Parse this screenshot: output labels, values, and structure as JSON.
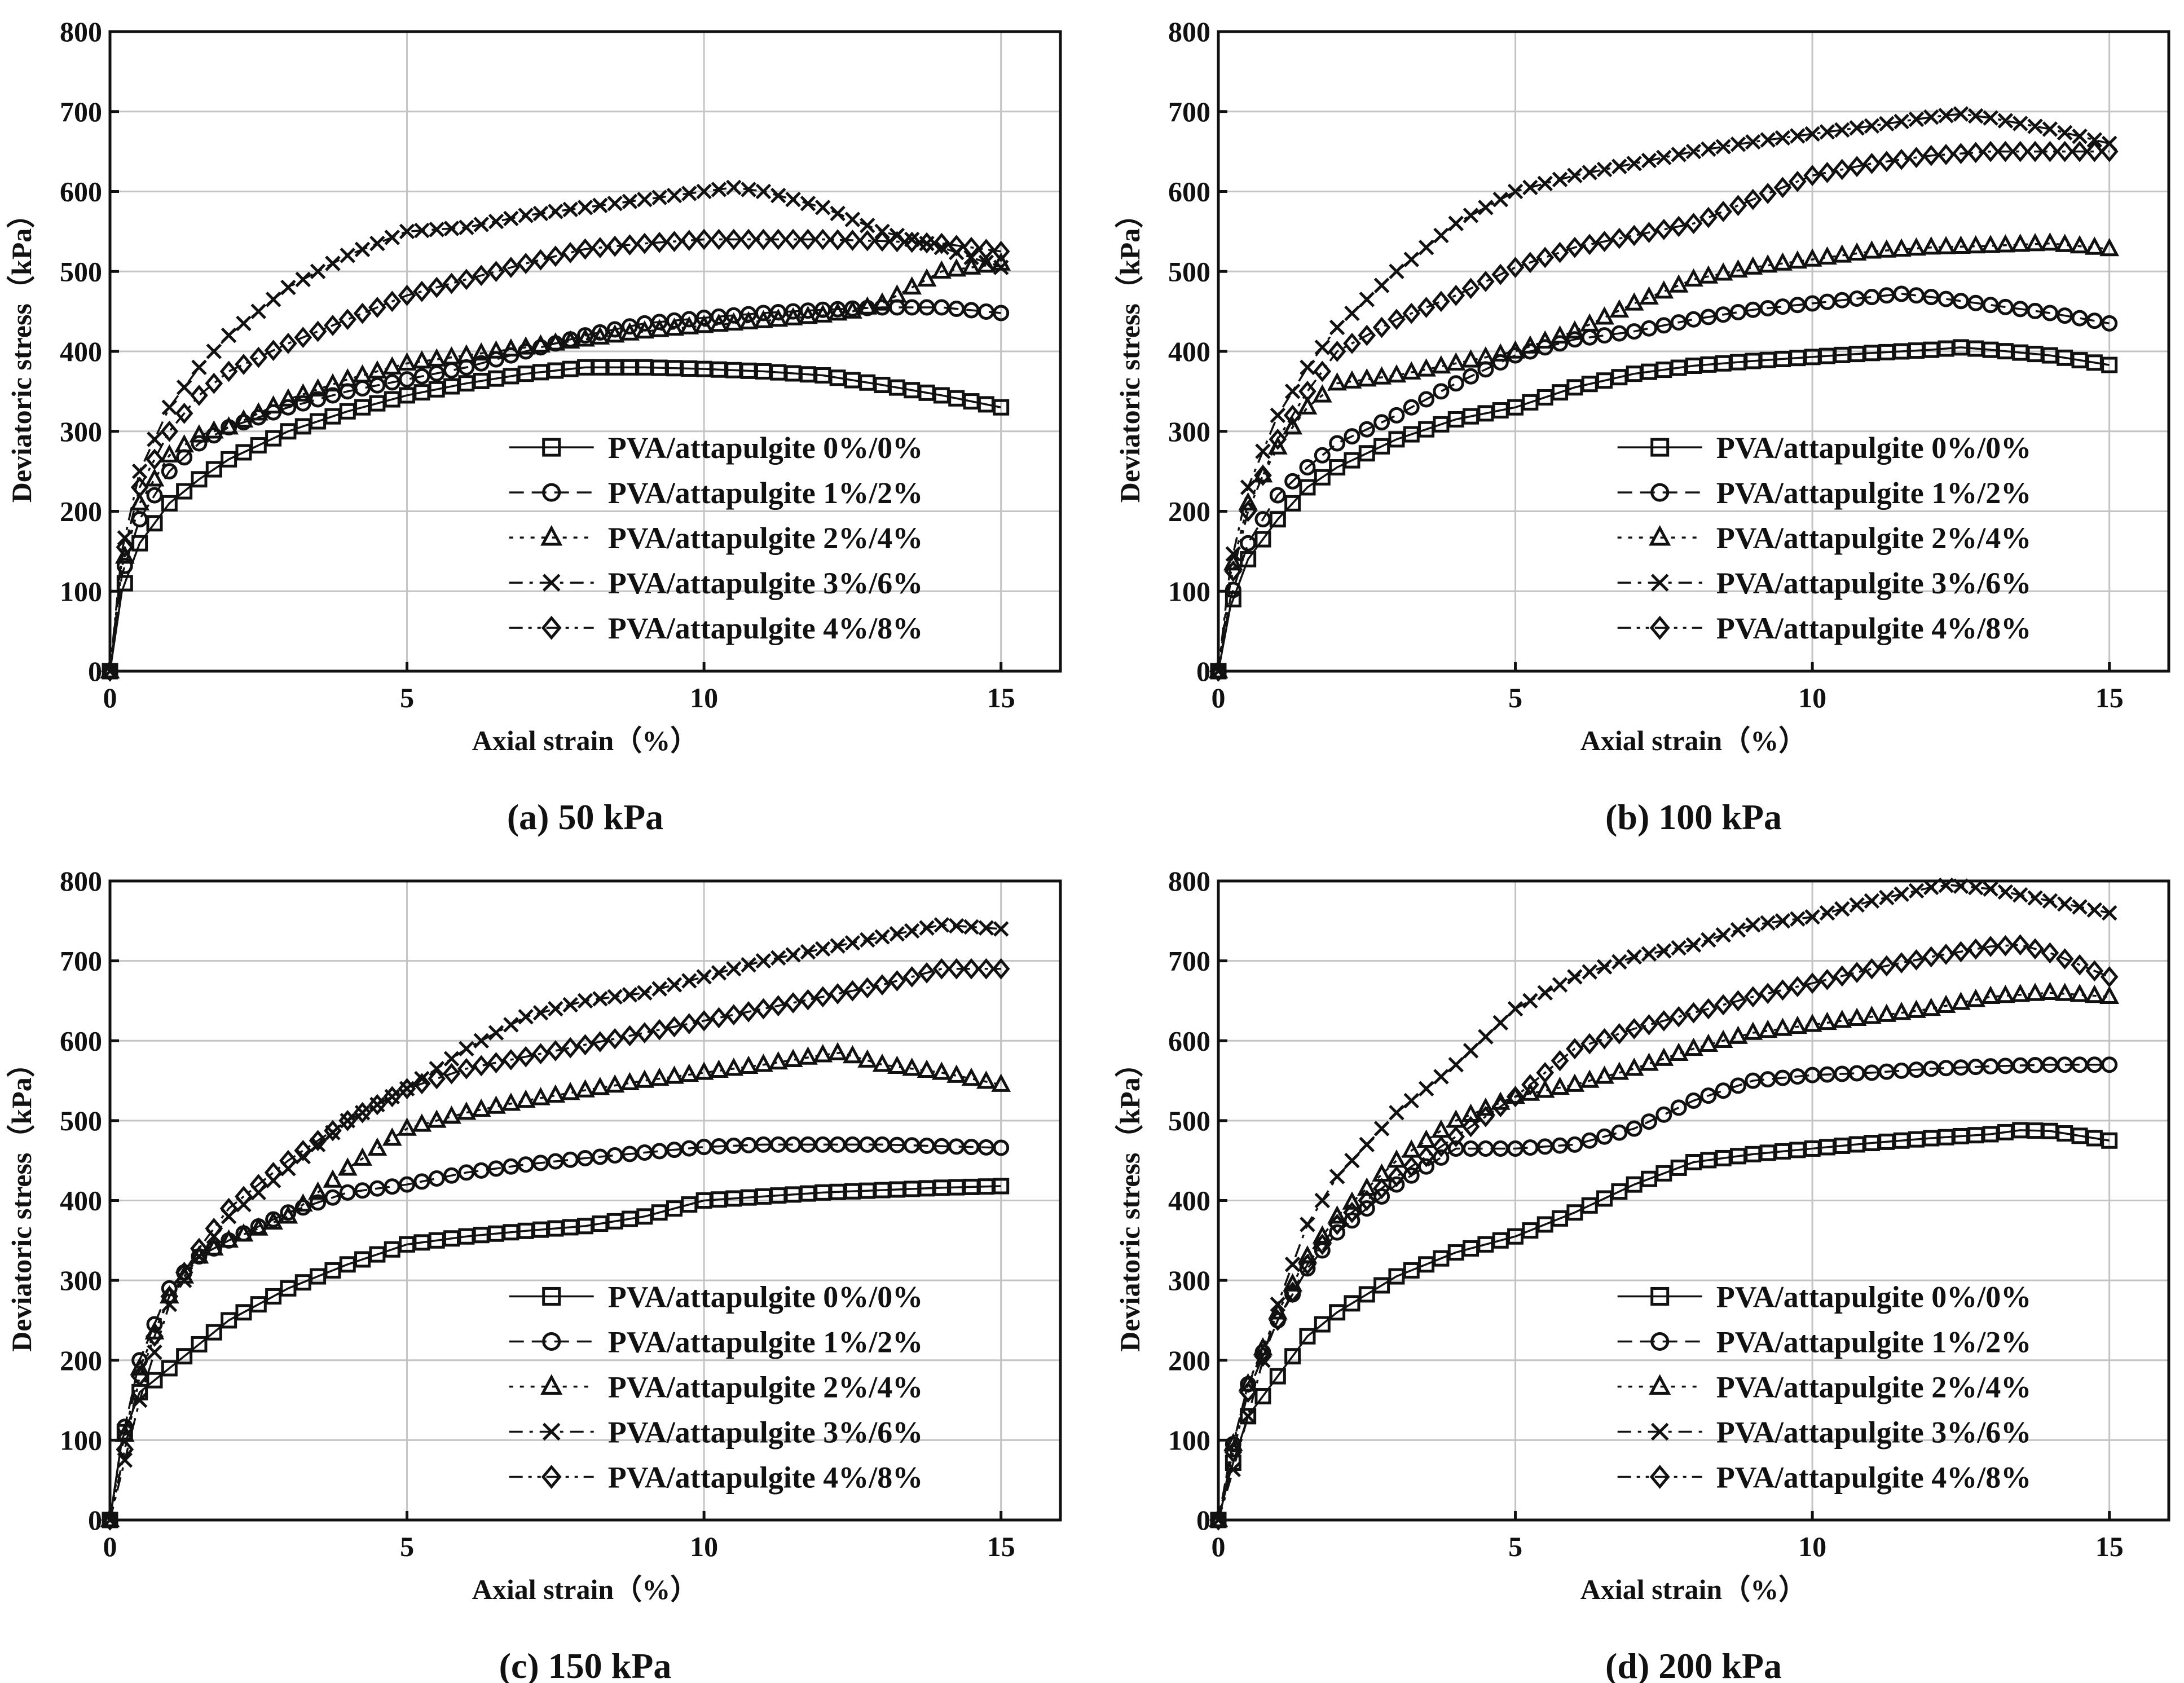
{
  "figure": {
    "colors": {
      "ink": "#111111",
      "grid": "#c4c4c4",
      "background": "#ffffff"
    },
    "legend_labels": [
      "PVA/attapulgite 0%/0%",
      "PVA/attapulgite 1%/2%",
      "PVA/attapulgite 2%/4%",
      "PVA/attapulgite 3%/6%",
      "PVA/attapulgite 4%/8%"
    ],
    "marker_names": [
      "square-marker",
      "circle-marker",
      "triangle-marker",
      "cross-marker",
      "diamond-marker"
    ],
    "line_styles": [
      "solid",
      "dashed",
      "dotted",
      "dash-dot",
      "dash-dot-dot"
    ]
  },
  "chart_data": [
    {
      "type": "line",
      "caption": "(a) 50 kPa",
      "xlabel": "Axial strain（%）",
      "ylabel": "Deviatoric stress（kPa）",
      "xlim": [
        0,
        16
      ],
      "ylim": [
        0,
        800
      ],
      "xticks": [
        0,
        5,
        10,
        15
      ],
      "yticks": [
        0,
        100,
        200,
        300,
        400,
        500,
        600,
        700,
        800
      ],
      "grid": true,
      "legend_position": "lower-right",
      "series": [
        {
          "name": "PVA/attapulgite 0%/0%",
          "x": [
            0,
            0.2,
            0.5,
            1,
            1.5,
            2,
            3,
            4,
            5,
            6,
            7,
            8,
            9,
            10,
            11,
            12,
            13,
            14,
            15
          ],
          "y": [
            0,
            100,
            160,
            210,
            240,
            265,
            300,
            325,
            345,
            360,
            372,
            380,
            380,
            378,
            375,
            370,
            358,
            345,
            330
          ]
        },
        {
          "name": "PVA/attapulgite 1%/2%",
          "x": [
            0,
            0.2,
            0.5,
            1,
            1.5,
            2,
            3,
            4,
            5,
            6,
            7,
            8,
            9,
            10,
            11,
            12,
            13,
            14,
            15
          ],
          "y": [
            0,
            120,
            190,
            250,
            285,
            305,
            330,
            350,
            365,
            380,
            400,
            420,
            435,
            442,
            448,
            452,
            455,
            455,
            448
          ]
        },
        {
          "name": "PVA/attapulgite 2%/4%",
          "x": [
            0,
            0.2,
            0.5,
            1,
            1.5,
            2,
            3,
            4,
            5,
            6,
            7,
            8,
            9,
            10,
            11,
            12,
            12.5,
            13,
            14,
            15
          ],
          "y": [
            0,
            130,
            210,
            270,
            295,
            305,
            340,
            365,
            385,
            395,
            405,
            415,
            425,
            432,
            438,
            445,
            450,
            460,
            500,
            510
          ]
        },
        {
          "name": "PVA/attapulgite 3%/6%",
          "x": [
            0,
            0.2,
            0.5,
            1,
            1.5,
            2,
            3,
            4,
            5,
            6,
            7,
            8,
            9,
            10,
            10.5,
            11,
            12,
            13,
            14,
            15
          ],
          "y": [
            0,
            150,
            250,
            330,
            380,
            420,
            480,
            520,
            550,
            555,
            570,
            580,
            590,
            600,
            605,
            600,
            580,
            550,
            530,
            505
          ]
        },
        {
          "name": "PVA/attapulgite 4%/8%",
          "x": [
            0,
            0.2,
            0.5,
            1,
            1.5,
            2,
            3,
            4,
            5,
            6,
            7,
            8,
            9,
            10,
            11,
            12,
            13,
            14,
            15
          ],
          "y": [
            0,
            140,
            230,
            300,
            345,
            375,
            410,
            440,
            470,
            490,
            510,
            528,
            535,
            540,
            540,
            540,
            538,
            535,
            525
          ]
        }
      ]
    },
    {
      "type": "line",
      "caption": "(b) 100 kPa",
      "xlabel": "Axial strain（%）",
      "ylabel": "Deviatoric stress（kPa）",
      "xlim": [
        0,
        16
      ],
      "ylim": [
        0,
        800
      ],
      "xticks": [
        0,
        5,
        10,
        15
      ],
      "yticks": [
        0,
        100,
        200,
        300,
        400,
        500,
        600,
        700,
        800
      ],
      "grid": true,
      "legend_position": "lower-right",
      "series": [
        {
          "name": "PVA/attapulgite 0%/0%",
          "x": [
            0,
            0.2,
            0.5,
            1,
            1.5,
            2,
            3,
            4,
            5,
            6,
            7,
            8,
            9,
            10,
            11,
            12,
            12.5,
            13,
            14,
            15
          ],
          "y": [
            0,
            80,
            140,
            190,
            230,
            255,
            290,
            315,
            330,
            355,
            372,
            382,
            388,
            393,
            398,
            402,
            405,
            402,
            395,
            383
          ]
        },
        {
          "name": "PVA/attapulgite 1%/2%",
          "x": [
            0,
            0.2,
            0.5,
            1,
            1.5,
            2,
            3,
            4,
            5,
            6,
            7,
            8,
            9,
            10,
            11,
            11.5,
            12,
            13,
            14,
            15
          ],
          "y": [
            0,
            90,
            160,
            220,
            255,
            285,
            320,
            360,
            395,
            415,
            425,
            440,
            452,
            460,
            468,
            472,
            468,
            458,
            448,
            435
          ]
        },
        {
          "name": "PVA/attapulgite 2%/4%",
          "x": [
            0,
            0.2,
            0.5,
            1,
            1.5,
            2,
            3,
            4,
            5,
            6,
            7,
            8,
            9,
            10,
            11,
            12,
            13,
            14,
            15
          ],
          "y": [
            0,
            120,
            210,
            280,
            330,
            360,
            370,
            385,
            400,
            425,
            460,
            490,
            505,
            515,
            525,
            530,
            532,
            535,
            528
          ]
        },
        {
          "name": "PVA/attapulgite 3%/6%",
          "x": [
            0,
            0.2,
            0.5,
            1,
            1.5,
            2,
            3,
            4,
            5,
            6,
            7,
            8,
            9,
            10,
            11,
            12,
            12.5,
            13,
            14,
            15
          ],
          "y": [
            0,
            130,
            230,
            320,
            380,
            430,
            500,
            560,
            600,
            620,
            635,
            650,
            662,
            672,
            682,
            693,
            697,
            692,
            678,
            660
          ]
        },
        {
          "name": "PVA/attapulgite 4%/8%",
          "x": [
            0,
            0.2,
            0.5,
            1,
            1.5,
            2,
            3,
            4,
            5,
            6,
            7,
            8,
            9,
            10,
            11,
            12,
            13,
            14,
            15
          ],
          "y": [
            0,
            110,
            200,
            290,
            350,
            400,
            440,
            470,
            505,
            530,
            545,
            560,
            590,
            620,
            635,
            645,
            650,
            650,
            650
          ]
        }
      ]
    },
    {
      "type": "line",
      "caption": "(c) 150 kPa",
      "xlabel": "Axial strain（%）",
      "ylabel": "Deviatoric stress（kPa）",
      "xlim": [
        0,
        16
      ],
      "ylim": [
        0,
        800
      ],
      "xticks": [
        0,
        5,
        10,
        15
      ],
      "yticks": [
        0,
        100,
        200,
        300,
        400,
        500,
        600,
        700,
        800
      ],
      "grid": true,
      "legend_position": "lower-right",
      "series": [
        {
          "name": "PVA/attapulgite 0%/0%",
          "x": [
            0,
            0.2,
            0.5,
            1,
            1.5,
            2,
            3,
            4,
            5,
            6,
            7,
            8,
            9,
            10,
            11,
            12,
            13,
            14,
            15
          ],
          "y": [
            0,
            100,
            160,
            190,
            220,
            250,
            290,
            320,
            345,
            355,
            362,
            368,
            380,
            400,
            405,
            410,
            413,
            416,
            418
          ]
        },
        {
          "name": "PVA/attapulgite 1%/2%",
          "x": [
            0,
            0.2,
            0.5,
            1,
            1.5,
            2,
            3,
            4,
            5,
            6,
            7,
            8,
            9,
            10,
            11,
            12,
            13,
            14,
            15
          ],
          "y": [
            0,
            100,
            200,
            290,
            330,
            350,
            385,
            410,
            420,
            435,
            445,
            453,
            460,
            467,
            470,
            470,
            470,
            468,
            466
          ]
        },
        {
          "name": "PVA/attapulgite 2%/4%",
          "x": [
            0,
            0.2,
            0.5,
            1,
            1.5,
            2,
            3,
            4,
            5,
            6,
            7,
            8,
            9,
            10,
            11,
            12,
            12.3,
            13,
            14,
            15
          ],
          "y": [
            0,
            90,
            190,
            280,
            330,
            350,
            380,
            440,
            490,
            510,
            525,
            538,
            550,
            560,
            570,
            582,
            585,
            570,
            560,
            545
          ]
        },
        {
          "name": "PVA/attapulgite 3%/6%",
          "x": [
            0,
            0.2,
            0.5,
            1,
            1.5,
            2,
            3,
            4,
            5,
            6,
            7,
            8,
            9,
            10,
            11,
            12,
            13,
            14,
            15
          ],
          "y": [
            0,
            60,
            150,
            270,
            330,
            380,
            440,
            500,
            540,
            590,
            630,
            650,
            660,
            680,
            700,
            715,
            730,
            745,
            740
          ]
        },
        {
          "name": "PVA/attapulgite 4%/8%",
          "x": [
            0,
            0.2,
            0.5,
            1,
            1.5,
            2,
            3,
            4,
            5,
            6,
            7,
            8,
            9,
            10,
            11,
            12,
            13,
            14,
            15
          ],
          "y": [
            0,
            70,
            180,
            280,
            340,
            390,
            450,
            500,
            540,
            565,
            580,
            595,
            610,
            625,
            640,
            655,
            670,
            690,
            690
          ]
        }
      ]
    },
    {
      "type": "line",
      "caption": "(d) 200 kPa",
      "xlabel": "Axial strain（%）",
      "ylabel": "Deviatoric stress（kPa）",
      "xlim": [
        0,
        16
      ],
      "ylim": [
        0,
        800
      ],
      "xticks": [
        0,
        5,
        10,
        15
      ],
      "yticks": [
        0,
        100,
        200,
        300,
        400,
        500,
        600,
        700,
        800
      ],
      "grid": true,
      "legend_position": "lower-right",
      "series": [
        {
          "name": "PVA/attapulgite 0%/0%",
          "x": [
            0,
            0.2,
            0.5,
            1,
            1.5,
            2,
            3,
            4,
            5,
            6,
            7,
            8,
            9,
            10,
            11,
            12,
            13,
            13.5,
            14,
            15
          ],
          "y": [
            0,
            60,
            130,
            180,
            230,
            260,
            305,
            335,
            355,
            385,
            420,
            448,
            458,
            465,
            472,
            478,
            483,
            488,
            487,
            475
          ]
        },
        {
          "name": "PVA/attapulgite 1%/2%",
          "x": [
            0,
            0.2,
            0.5,
            1,
            1.5,
            2,
            3,
            4,
            5,
            6,
            7,
            8,
            9,
            10,
            11,
            12,
            13,
            14,
            15
          ],
          "y": [
            0,
            80,
            170,
            250,
            315,
            360,
            420,
            465,
            465,
            470,
            490,
            525,
            550,
            557,
            560,
            565,
            568,
            570,
            570
          ]
        },
        {
          "name": "PVA/attapulgite 2%/4%",
          "x": [
            0,
            0.2,
            0.5,
            1,
            1.5,
            2,
            3,
            4,
            5,
            6,
            7,
            8,
            9,
            10,
            11,
            12,
            13,
            14,
            15
          ],
          "y": [
            0,
            80,
            170,
            260,
            330,
            380,
            450,
            500,
            530,
            545,
            565,
            590,
            610,
            620,
            630,
            640,
            655,
            660,
            655
          ]
        },
        {
          "name": "PVA/attapulgite 3%/6%",
          "x": [
            0,
            0.2,
            0.5,
            1,
            1.5,
            2,
            3,
            4,
            5,
            6,
            7,
            8,
            9,
            10,
            11,
            12,
            12.3,
            13,
            14,
            15
          ],
          "y": [
            0,
            50,
            130,
            270,
            370,
            430,
            510,
            570,
            640,
            680,
            705,
            720,
            745,
            755,
            775,
            792,
            795,
            790,
            775,
            760
          ]
        },
        {
          "name": "PVA/attapulgite 4%/8%",
          "x": [
            0,
            0.2,
            0.5,
            1,
            1.5,
            2,
            3,
            4,
            5,
            6,
            7,
            8,
            9,
            10,
            11,
            12,
            13,
            13.5,
            14,
            15
          ],
          "y": [
            0,
            70,
            160,
            250,
            320,
            370,
            430,
            480,
            530,
            590,
            615,
            635,
            655,
            672,
            690,
            705,
            718,
            720,
            710,
            680
          ]
        }
      ]
    }
  ]
}
